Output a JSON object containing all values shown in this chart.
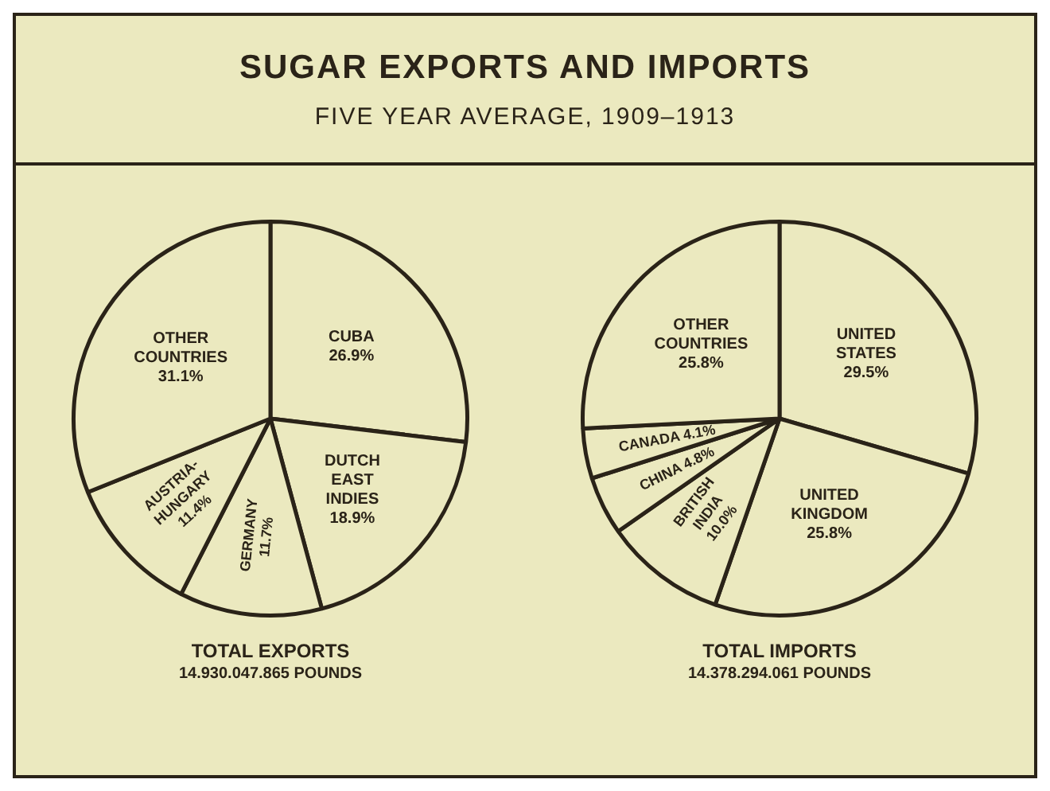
{
  "chart_data": [
    {
      "type": "pie",
      "title": "SUGAR EXPORTS AND IMPORTS",
      "subtitle": "FIVE YEAR AVERAGE, 1909–1913",
      "xlabel": "TOTAL EXPORTS",
      "annotations": [
        "14.930.047.865 POUNDS"
      ],
      "categories": [
        "CUBA",
        "DUTCH EAST INDIES",
        "GERMANY",
        "AUSTRIA-HUNGARY",
        "OTHER COUNTRIES"
      ],
      "values": [
        26.9,
        18.9,
        11.7,
        11.4,
        31.1
      ],
      "value_labels": [
        "26.9%",
        "18.9%",
        "11.7%",
        "11.4%",
        "31.1%"
      ],
      "colors": [
        "#ebe9bf",
        "#ebe9bf",
        "#ebe9bf",
        "#ebe9bf",
        "#ebe9bf"
      ],
      "legend": false
    },
    {
      "type": "pie",
      "xlabel": "TOTAL IMPORTS",
      "annotations": [
        "14.378.294.061 POUNDS"
      ],
      "categories": [
        "UNITED STATES",
        "UNITED KINGDOM",
        "BRITISH INDIA",
        "CHINA",
        "CANADA",
        "OTHER COUNTRIES"
      ],
      "values": [
        29.5,
        25.8,
        10.0,
        4.8,
        4.1,
        25.8
      ],
      "value_labels": [
        "29.5%",
        "25.8%",
        "10.0%",
        "4.8%",
        "4.1%",
        "25.8%"
      ],
      "colors": [
        "#ebe9bf",
        "#ebe9bf",
        "#ebe9bf",
        "#ebe9bf",
        "#ebe9bf",
        "#ebe9bf"
      ],
      "legend": false
    }
  ]
}
